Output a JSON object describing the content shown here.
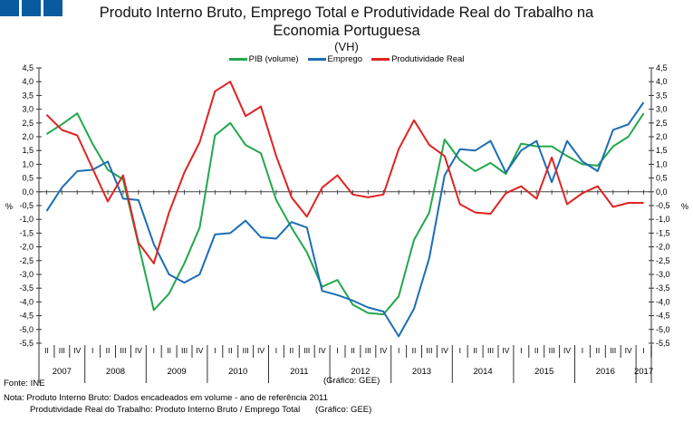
{
  "chart_data": {
    "type": "line",
    "title": "Produto Interno Bruto, Emprego Total e Produtividade Real do Trabalho na",
    "title_line2": "Economia Portuguesa",
    "subtitle": "(VH)",
    "ylabel_left": "%",
    "ylabel_right": "%",
    "ylim": [
      -5.5,
      4.5
    ],
    "yticks": [
      "4,5",
      "4,0",
      "3,5",
      "3,0",
      "2,5",
      "2,0",
      "1,5",
      "1,0",
      "0,5",
      "0,0",
      "-0,5",
      "-1,0",
      "-1,5",
      "-2,0",
      "-2,5",
      "-3,0",
      "-3,5",
      "-4,0",
      "-4,5",
      "-5,0",
      "-5,5"
    ],
    "legend_position": "top-center",
    "quarters": [
      "II",
      "III",
      "IV",
      "I",
      "II",
      "III",
      "IV",
      "I",
      "II",
      "III",
      "IV",
      "I",
      "II",
      "III",
      "IV",
      "I",
      "II",
      "III",
      "IV",
      "I",
      "II",
      "III",
      "IV",
      "I",
      "II",
      "III",
      "IV",
      "I",
      "II",
      "III",
      "IV",
      "I",
      "II",
      "III",
      "IV",
      "I",
      "II",
      "III",
      "IV",
      "I"
    ],
    "years": [
      "2007",
      "2008",
      "2009",
      "2010",
      "2011",
      "2012",
      "2013",
      "2014",
      "2015",
      "2016",
      "2017"
    ],
    "series": [
      {
        "name": "PIB (volume)",
        "color": "#22a74d",
        "values": [
          2.1,
          2.45,
          2.85,
          1.75,
          0.8,
          0.45,
          -1.9,
          -4.3,
          -3.7,
          -2.6,
          -1.3,
          2.05,
          2.5,
          1.7,
          1.4,
          -0.3,
          -1.3,
          -2.2,
          -3.45,
          -3.2,
          -4.1,
          -4.4,
          -4.45,
          -3.8,
          -1.75,
          -0.75,
          1.9,
          1.15,
          0.75,
          1.05,
          0.65,
          1.75,
          1.65,
          1.65,
          1.3,
          1.0,
          0.95,
          1.65,
          2.0,
          2.85
        ]
      },
      {
        "name": "Emprego",
        "color": "#1d6db4",
        "values": [
          -0.7,
          0.15,
          0.75,
          0.8,
          1.1,
          -0.25,
          -0.3,
          -1.9,
          -3.0,
          -3.3,
          -3.0,
          -1.55,
          -1.5,
          -1.05,
          -1.65,
          -1.7,
          -1.1,
          -1.3,
          -3.6,
          -3.75,
          -3.95,
          -4.2,
          -4.35,
          -5.25,
          -4.25,
          -2.4,
          0.6,
          1.55,
          1.5,
          1.85,
          0.7,
          1.5,
          1.85,
          0.35,
          1.85,
          1.1,
          0.75,
          2.25,
          2.45,
          3.25
        ]
      },
      {
        "name": "Produtividade Real",
        "color": "#e02222",
        "values": [
          2.8,
          2.25,
          2.05,
          0.85,
          -0.35,
          0.6,
          -1.85,
          -2.6,
          -0.75,
          0.7,
          1.8,
          3.65,
          4.0,
          2.75,
          3.1,
          1.3,
          -0.2,
          -0.9,
          0.15,
          0.6,
          -0.1,
          -0.2,
          -0.1,
          1.55,
          2.6,
          1.7,
          1.3,
          -0.45,
          -0.75,
          -0.8,
          -0.05,
          0.2,
          -0.25,
          1.25,
          -0.45,
          -0.05,
          0.2,
          -0.55,
          -0.4,
          -0.4
        ]
      }
    ]
  },
  "footer": {
    "source": "Fonte: INE",
    "credit": "(Gráfico: GEE)",
    "note1": "Nota: Produto Interno Bruto: Dados encadeados em volume - ano de referência 2011",
    "note2": "Produtividade Real do Trabalho: Produto Interno Bruto / Emprego Total",
    "credit2": "(Gráfico: GEE)"
  }
}
